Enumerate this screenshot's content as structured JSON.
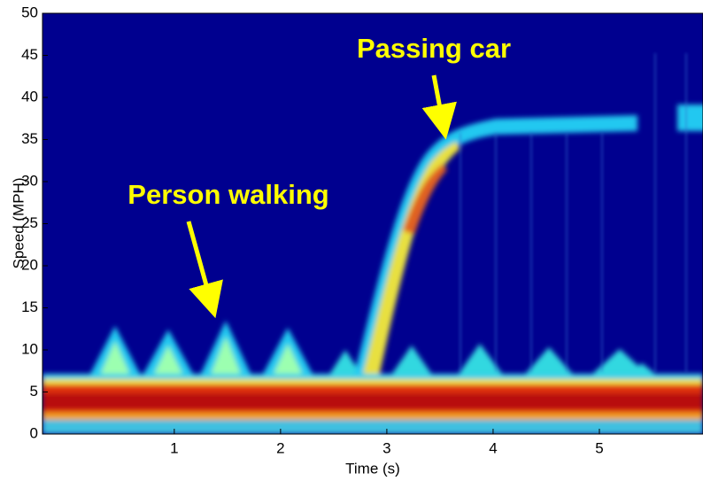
{
  "chart_data": {
    "type": "spectrogram",
    "x_label": "Time (s)",
    "y_label": "Speed (MPH)",
    "xlim": [
      -0.24,
      5.975
    ],
    "xticks": [
      1,
      2,
      3,
      4,
      5
    ],
    "ylim": [
      0,
      50
    ],
    "yticks": [
      0,
      5,
      10,
      15,
      20,
      25,
      30,
      35,
      40,
      45,
      50
    ],
    "annotations": [
      "Passing car",
      "Person walking"
    ],
    "grid": false
  }
}
